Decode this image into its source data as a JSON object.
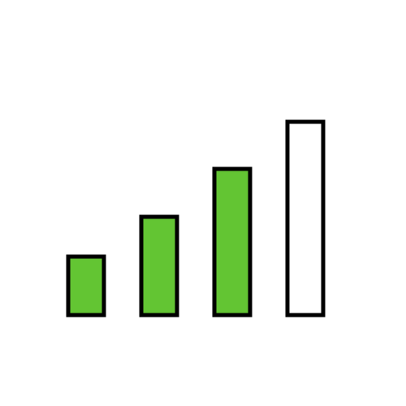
{
  "icon": {
    "name": "signal-strength-icon",
    "bars_total": 4,
    "bars_active": 3,
    "colors": {
      "active_fill": "#63c533",
      "inactive_fill": "#ffffff",
      "stroke": "#000000",
      "background": "#ffffff"
    }
  }
}
